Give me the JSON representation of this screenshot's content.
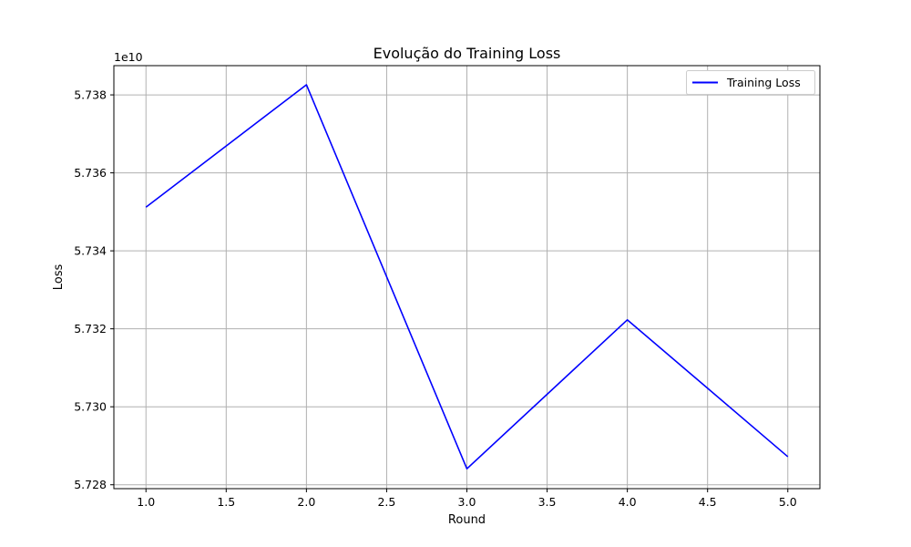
{
  "chart_data": {
    "type": "line",
    "title": "Evolução do Training Loss",
    "xlabel": "Round",
    "ylabel": "Loss",
    "y_offset_label": "1e10",
    "xlim": [
      0.8,
      5.2
    ],
    "ylim": [
      5.7279,
      5.73875
    ],
    "x_ticks": [
      1.0,
      1.5,
      2.0,
      2.5,
      3.0,
      3.5,
      4.0,
      4.5,
      5.0
    ],
    "x_tick_labels": [
      "1.0",
      "1.5",
      "2.0",
      "2.5",
      "3.0",
      "3.5",
      "4.0",
      "4.5",
      "5.0"
    ],
    "y_ticks": [
      5.728,
      5.73,
      5.732,
      5.734,
      5.736,
      5.738
    ],
    "y_tick_labels": [
      "5.728",
      "5.730",
      "5.732",
      "5.734",
      "5.736",
      "5.738"
    ],
    "grid": true,
    "legend_position": "top-right",
    "series": [
      {
        "name": "Training Loss",
        "color": "#0000ff",
        "x": [
          1,
          2,
          3,
          4,
          5
        ],
        "y": [
          5.73512,
          5.73826,
          5.72841,
          5.73223,
          5.72872
        ]
      }
    ]
  }
}
